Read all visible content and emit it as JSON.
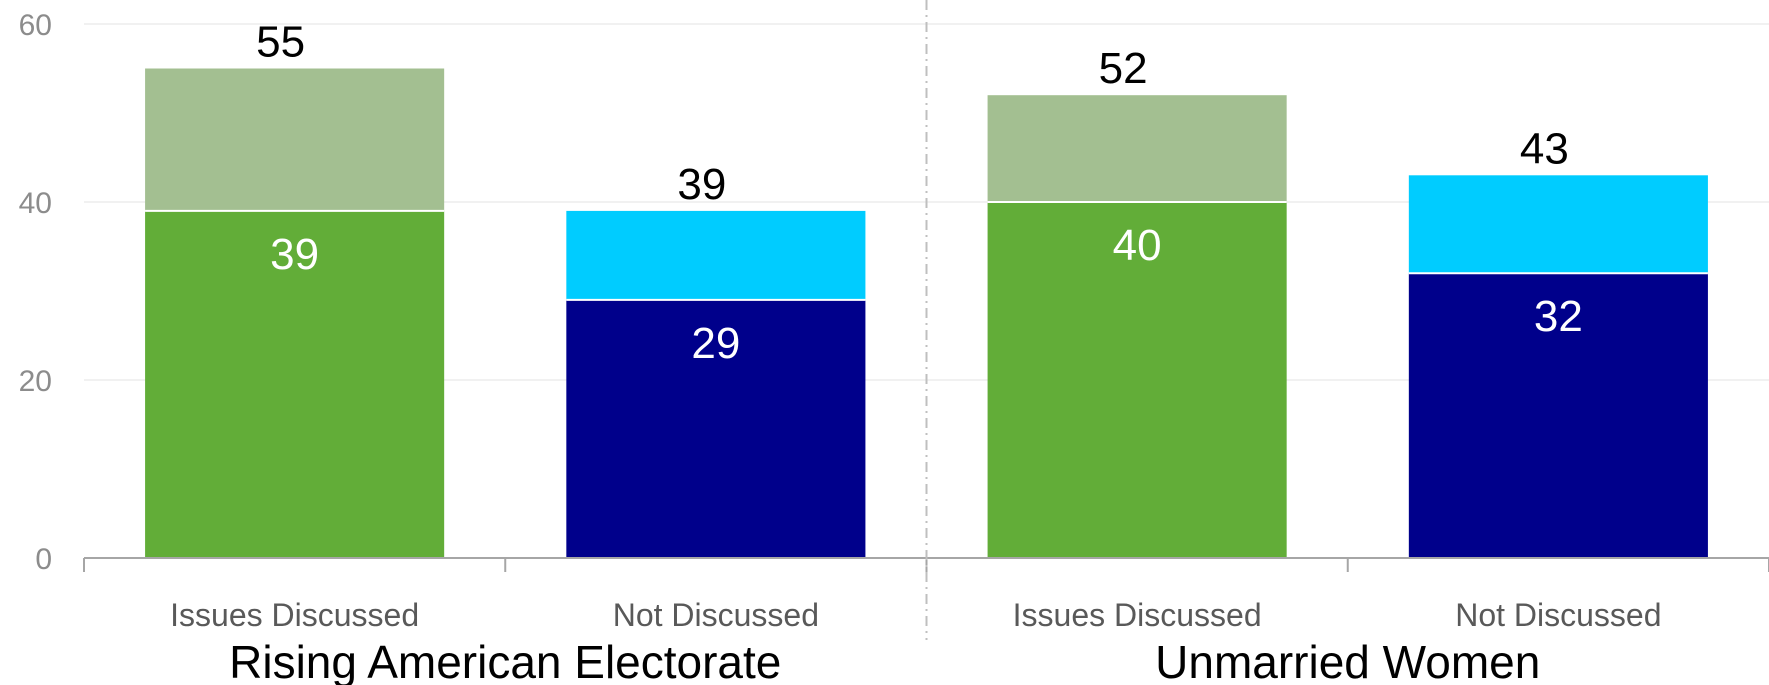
{
  "chart_data": {
    "type": "bar",
    "stacked": true,
    "ylim": [
      0,
      60
    ],
    "yticks": [
      0,
      20,
      40,
      60
    ],
    "grid": true,
    "groups": [
      {
        "label": "Rising American Electorate",
        "bars": [
          {
            "category": "Issues Discussed",
            "base": 39,
            "total": 55,
            "base_color": "#62ad38",
            "top_color": "#a3bf91"
          },
          {
            "category": "Not Discussed",
            "base": 29,
            "total": 39,
            "base_color": "#00008b",
            "top_color": "#00ccff"
          }
        ]
      },
      {
        "label": "Unmarried Women",
        "bars": [
          {
            "category": "Issues Discussed",
            "base": 40,
            "total": 52,
            "base_color": "#62ad38",
            "top_color": "#a3bf91"
          },
          {
            "category": "Not Discussed",
            "base": 32,
            "total": 43,
            "base_color": "#00008b",
            "top_color": "#00ccff"
          }
        ]
      }
    ]
  }
}
